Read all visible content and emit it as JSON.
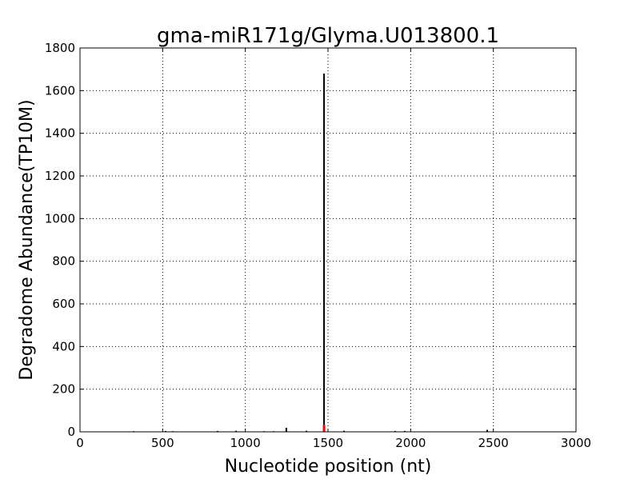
{
  "chart_data": {
    "type": "bar",
    "title": "gma-miR171g/Glyma.U013800.1",
    "xlabel": "Nucleotide position (nt)",
    "ylabel": "Degradome Abundance(TP10M)",
    "xlim": [
      0,
      3000
    ],
    "ylim": [
      0,
      1800
    ],
    "xticks": [
      0,
      500,
      1000,
      1500,
      2000,
      2500,
      3000
    ],
    "yticks": [
      0,
      200,
      400,
      600,
      800,
      1000,
      1200,
      1400,
      1600,
      1800
    ],
    "grid": true,
    "series": [
      {
        "color": "#000000",
        "points": [
          {
            "x": 324,
            "y": 3
          },
          {
            "x": 518,
            "y": 4
          },
          {
            "x": 561,
            "y": 3
          },
          {
            "x": 832,
            "y": 4
          },
          {
            "x": 944,
            "y": 5
          },
          {
            "x": 1113,
            "y": 3
          },
          {
            "x": 1170,
            "y": 3
          },
          {
            "x": 1248,
            "y": 19
          },
          {
            "x": 1370,
            "y": 5
          },
          {
            "x": 1476,
            "y": 1680
          },
          {
            "x": 1597,
            "y": 5
          },
          {
            "x": 1906,
            "y": 4
          },
          {
            "x": 1964,
            "y": 4
          },
          {
            "x": 2463,
            "y": 9
          }
        ]
      },
      {
        "color": "#ff0000",
        "points": [
          {
            "x": 1476,
            "y": 34
          }
        ]
      }
    ]
  }
}
